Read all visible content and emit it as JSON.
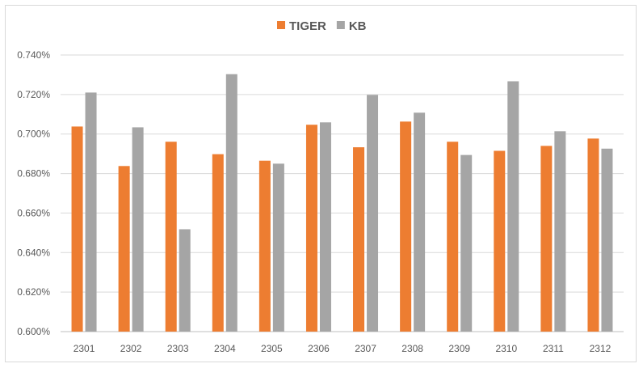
{
  "chart_data": {
    "type": "bar",
    "title": "",
    "xlabel": "",
    "ylabel": "",
    "categories": [
      "2301",
      "2302",
      "2303",
      "2304",
      "2305",
      "2306",
      "2307",
      "2308",
      "2309",
      "2310",
      "2311",
      "2312"
    ],
    "series": [
      {
        "name": "TIGER",
        "color": "#ed7d31",
        "values": [
          0.7038,
          0.6838,
          0.6961,
          0.6898,
          0.6865,
          0.7047,
          0.6933,
          0.7063,
          0.6961,
          0.6915,
          0.694,
          0.6977
        ]
      },
      {
        "name": "KB",
        "color": "#a5a5a5",
        "values": [
          0.721,
          0.7034,
          0.6518,
          0.7303,
          0.685,
          0.7059,
          0.7198,
          0.7108,
          0.6894,
          0.7267,
          0.7014,
          0.6926
        ]
      }
    ],
    "ylim": [
      0.6,
      0.74
    ],
    "yticks": [
      "0.600%",
      "0.620%",
      "0.640%",
      "0.660%",
      "0.680%",
      "0.700%",
      "0.720%",
      "0.740%"
    ],
    "legend_position": "top-center",
    "grid": true
  }
}
